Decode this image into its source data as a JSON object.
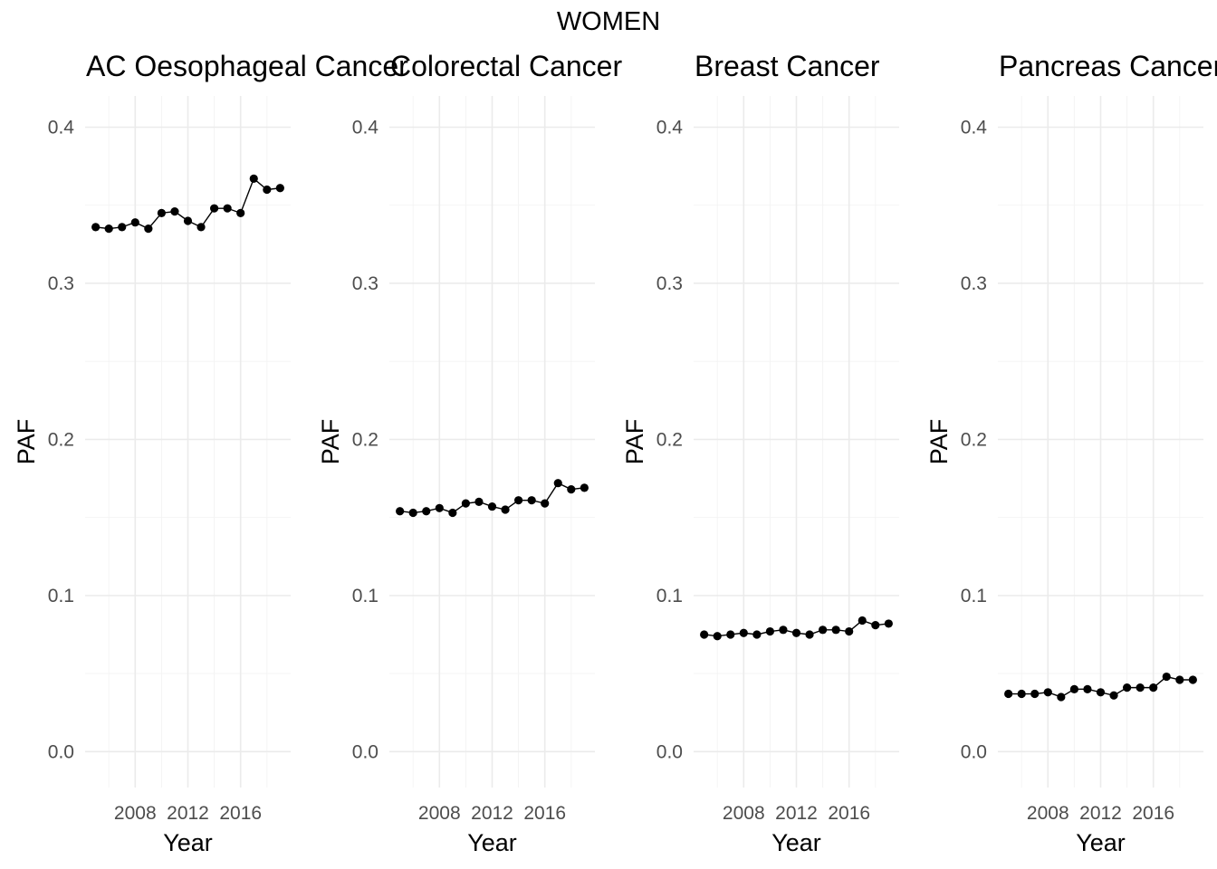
{
  "figure": {
    "title": "WOMEN"
  },
  "chart_data": [
    {
      "type": "line",
      "title": "AC Oesophageal Cancer",
      "xlabel": "Year",
      "ylabel": "PAF",
      "xlim": [
        2004.2,
        2019.8
      ],
      "ylim": [
        -0.023,
        0.42
      ],
      "x_ticks": [
        2008,
        2012,
        2016
      ],
      "y_ticks": [
        0.0,
        0.1,
        0.2,
        0.3,
        0.4
      ],
      "y_tick_labels": [
        "0.0",
        "0.1",
        "0.2",
        "0.3",
        "0.4"
      ],
      "x": [
        2005,
        2006,
        2007,
        2008,
        2009,
        2010,
        2011,
        2012,
        2013,
        2014,
        2015,
        2016,
        2017,
        2018,
        2019
      ],
      "values": [
        0.336,
        0.335,
        0.336,
        0.339,
        0.335,
        0.345,
        0.346,
        0.34,
        0.336,
        0.348,
        0.348,
        0.345,
        0.367,
        0.36,
        0.361
      ]
    },
    {
      "type": "line",
      "title": "Colorectal Cancer",
      "xlabel": "Year",
      "ylabel": "PAF",
      "xlim": [
        2004.2,
        2019.8
      ],
      "ylim": [
        -0.023,
        0.42
      ],
      "x_ticks": [
        2008,
        2012,
        2016
      ],
      "y_ticks": [
        0.0,
        0.1,
        0.2,
        0.3,
        0.4
      ],
      "y_tick_labels": [
        "0.0",
        "0.1",
        "0.2",
        "0.3",
        "0.4"
      ],
      "x": [
        2005,
        2006,
        2007,
        2008,
        2009,
        2010,
        2011,
        2012,
        2013,
        2014,
        2015,
        2016,
        2017,
        2018,
        2019
      ],
      "values": [
        0.154,
        0.153,
        0.154,
        0.156,
        0.153,
        0.159,
        0.16,
        0.157,
        0.155,
        0.161,
        0.161,
        0.159,
        0.172,
        0.168,
        0.169
      ]
    },
    {
      "type": "line",
      "title": "Breast Cancer",
      "xlabel": "Year",
      "ylabel": "PAF",
      "xlim": [
        2004.2,
        2019.8
      ],
      "ylim": [
        -0.023,
        0.42
      ],
      "x_ticks": [
        2008,
        2012,
        2016
      ],
      "y_ticks": [
        0.0,
        0.1,
        0.2,
        0.3,
        0.4
      ],
      "y_tick_labels": [
        "0.0",
        "0.1",
        "0.2",
        "0.3",
        "0.4"
      ],
      "x": [
        2005,
        2006,
        2007,
        2008,
        2009,
        2010,
        2011,
        2012,
        2013,
        2014,
        2015,
        2016,
        2017,
        2018,
        2019
      ],
      "values": [
        0.075,
        0.074,
        0.075,
        0.076,
        0.075,
        0.077,
        0.078,
        0.076,
        0.075,
        0.078,
        0.078,
        0.077,
        0.084,
        0.081,
        0.082
      ]
    },
    {
      "type": "line",
      "title": "Pancreas Cancer",
      "xlabel": "Year",
      "ylabel": "PAF",
      "xlim": [
        2004.2,
        2019.8
      ],
      "ylim": [
        -0.023,
        0.42
      ],
      "x_ticks": [
        2008,
        2012,
        2016
      ],
      "y_ticks": [
        0.0,
        0.1,
        0.2,
        0.3,
        0.4
      ],
      "y_tick_labels": [
        "0.0",
        "0.1",
        "0.2",
        "0.3",
        "0.4"
      ],
      "x": [
        2005,
        2006,
        2007,
        2008,
        2009,
        2010,
        2011,
        2012,
        2013,
        2014,
        2015,
        2016,
        2017,
        2018,
        2019
      ],
      "values": [
        0.037,
        0.037,
        0.037,
        0.038,
        0.035,
        0.04,
        0.04,
        0.038,
        0.036,
        0.041,
        0.041,
        0.041,
        0.048,
        0.046,
        0.046
      ]
    }
  ]
}
